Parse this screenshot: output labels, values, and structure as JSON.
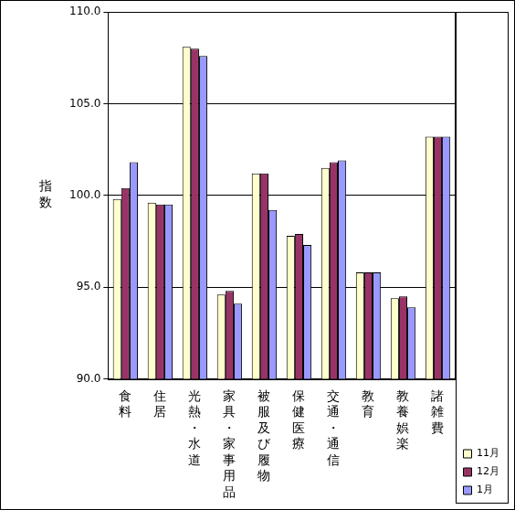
{
  "chart_data": {
    "type": "bar",
    "y_label": "指数",
    "categories": [
      "食料",
      "住居",
      "光熱・水道",
      "家具・家事用品",
      "被服及び履物",
      "保健医療",
      "交通・通信",
      "教育",
      "教養娯楽",
      "諸雑費"
    ],
    "series": [
      {
        "name": "11月",
        "color": "#ffffcc",
        "values": [
          99.8,
          99.6,
          108.1,
          94.6,
          101.2,
          97.8,
          101.5,
          95.8,
          94.4,
          103.2
        ]
      },
      {
        "name": "12月",
        "color": "#993366",
        "values": [
          100.4,
          99.5,
          108.0,
          94.8,
          101.2,
          97.9,
          101.8,
          95.8,
          94.5,
          103.2
        ]
      },
      {
        "name": "1月",
        "color": "#9999ff",
        "values": [
          101.8,
          99.5,
          107.6,
          94.1,
          99.2,
          97.3,
          101.9,
          95.8,
          93.9,
          103.2
        ]
      }
    ],
    "ylim": [
      90,
      110
    ],
    "yticks": [
      {
        "value": 90,
        "label": "90.0"
      },
      {
        "value": 95,
        "label": "95.0"
      },
      {
        "value": 100,
        "label": "100.0"
      },
      {
        "value": 105,
        "label": "105.0"
      },
      {
        "value": 110,
        "label": "110.0"
      }
    ],
    "grid": true,
    "legend": "lower right"
  }
}
